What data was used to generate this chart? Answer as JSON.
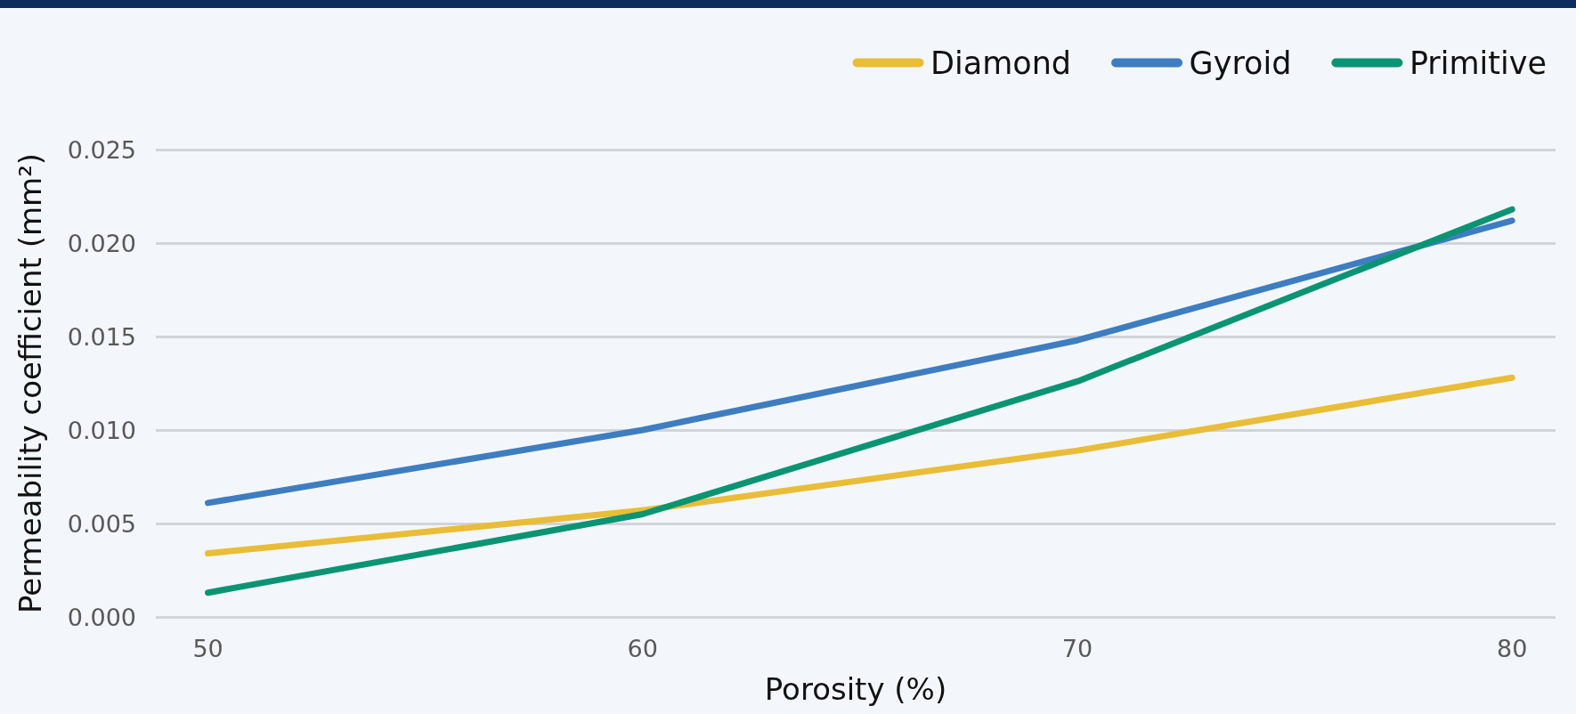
{
  "chart_data": {
    "type": "line",
    "xlabel": "Porosity (%)",
    "ylabel": "Permeability coefficient (mm²)",
    "x": [
      50,
      60,
      70,
      80
    ],
    "series": [
      {
        "name": "Diamond",
        "color": "#e9bd38",
        "values": [
          0.0034,
          0.0057,
          0.0089,
          0.0128
        ]
      },
      {
        "name": "Gyroid",
        "color": "#3f7dc1",
        "values": [
          0.0061,
          0.01,
          0.0148,
          0.0212
        ]
      },
      {
        "name": "Primitive",
        "color": "#0b9474",
        "values": [
          0.0013,
          0.0055,
          0.0126,
          0.0218
        ]
      }
    ],
    "xlim": [
      48.8,
      81
    ],
    "xticks": [
      50,
      60,
      70,
      80
    ],
    "ylim": [
      0,
      0.025
    ],
    "yticks": [
      {
        "value": 0,
        "label": "0.000"
      },
      {
        "value": 0.005,
        "label": "0.005"
      },
      {
        "value": 0.01,
        "label": "0.010"
      },
      {
        "value": 0.015,
        "label": "0.015"
      },
      {
        "value": 0.02,
        "label": "0.020"
      },
      {
        "value": 0.025,
        "label": "0.025"
      }
    ],
    "grid": "y",
    "legend": "top right",
    "marker": "none",
    "line_style": "solid"
  }
}
